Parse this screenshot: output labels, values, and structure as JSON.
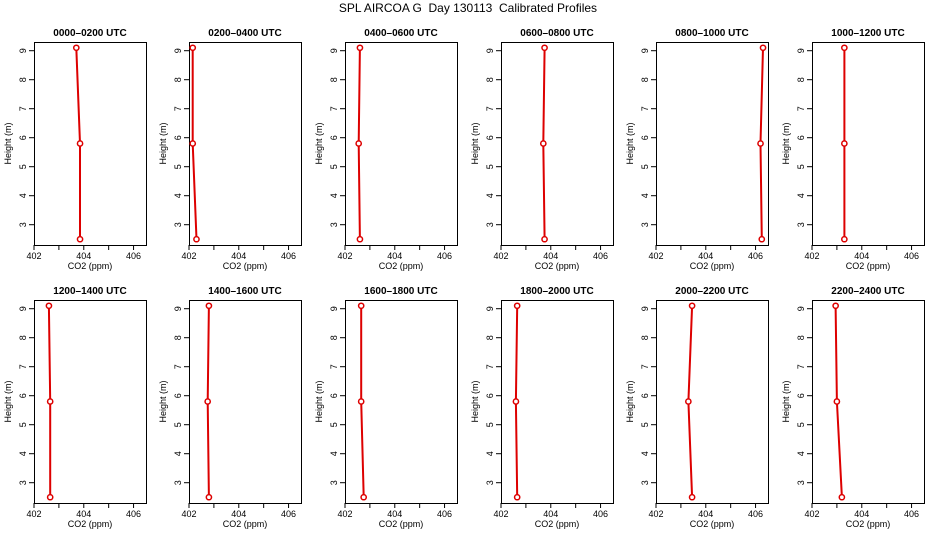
{
  "figure": {
    "title": "SPL AIRCOA G  Day 130113  Calibrated Profiles"
  },
  "style": {
    "series_color": "#dd0000"
  },
  "chart_data": [
    {
      "type": "line",
      "title": "0000–0200 UTC",
      "xlabel": "CO2 (ppm)",
      "ylabel": "Height (m)",
      "xlim": [
        402,
        406.5
      ],
      "ylim": [
        2.3,
        9.3
      ],
      "xticks": [
        402,
        404,
        406
      ],
      "yticks": [
        3,
        4,
        5,
        6,
        7,
        8,
        9
      ],
      "x": [
        403.85,
        403.85,
        403.7
      ],
      "y": [
        2.5,
        5.8,
        9.1
      ]
    },
    {
      "type": "line",
      "title": "0200–0400 UTC",
      "xlabel": "CO2 (ppm)",
      "ylabel": "Height (m)",
      "xlim": [
        402,
        406.5
      ],
      "ylim": [
        2.3,
        9.3
      ],
      "xticks": [
        402,
        404,
        406
      ],
      "yticks": [
        3,
        4,
        5,
        6,
        7,
        8,
        9
      ],
      "x": [
        402.3,
        402.15,
        402.15
      ],
      "y": [
        2.5,
        5.8,
        9.1
      ]
    },
    {
      "type": "line",
      "title": "0400–0600 UTC",
      "xlabel": "CO2 (ppm)",
      "ylabel": "Height (m)",
      "xlim": [
        402,
        406.5
      ],
      "ylim": [
        2.3,
        9.3
      ],
      "xticks": [
        402,
        404,
        406
      ],
      "yticks": [
        3,
        4,
        5,
        6,
        7,
        8,
        9
      ],
      "x": [
        402.6,
        402.55,
        402.6
      ],
      "y": [
        2.5,
        5.8,
        9.1
      ]
    },
    {
      "type": "line",
      "title": "0600–0800 UTC",
      "xlabel": "CO2 (ppm)",
      "ylabel": "Height (m)",
      "xlim": [
        402,
        406.5
      ],
      "ylim": [
        2.3,
        9.3
      ],
      "xticks": [
        402,
        404,
        406
      ],
      "yticks": [
        3,
        4,
        5,
        6,
        7,
        8,
        9
      ],
      "x": [
        403.75,
        403.7,
        403.75
      ],
      "y": [
        2.5,
        5.8,
        9.1
      ]
    },
    {
      "type": "line",
      "title": "0800–1000 UTC",
      "xlabel": "CO2 (ppm)",
      "ylabel": "Height (m)",
      "xlim": [
        402,
        406.5
      ],
      "ylim": [
        2.3,
        9.3
      ],
      "xticks": [
        402,
        404,
        406
      ],
      "yticks": [
        3,
        4,
        5,
        6,
        7,
        8,
        9
      ],
      "x": [
        406.25,
        406.2,
        406.3
      ],
      "y": [
        2.5,
        5.8,
        9.1
      ]
    },
    {
      "type": "line",
      "title": "1000–1200 UTC",
      "xlabel": "CO2 (ppm)",
      "ylabel": "Height (m)",
      "xlim": [
        402,
        406.5
      ],
      "ylim": [
        2.3,
        9.3
      ],
      "xticks": [
        402,
        404,
        406
      ],
      "yticks": [
        3,
        4,
        5,
        6,
        7,
        8,
        9
      ],
      "x": [
        403.3,
        403.3,
        403.3
      ],
      "y": [
        2.5,
        5.8,
        9.1
      ]
    },
    {
      "type": "line",
      "title": "1200–1400 UTC",
      "xlabel": "CO2 (ppm)",
      "ylabel": "Height (m)",
      "xlim": [
        402,
        406.5
      ],
      "ylim": [
        2.3,
        9.3
      ],
      "xticks": [
        402,
        404,
        406
      ],
      "yticks": [
        3,
        4,
        5,
        6,
        7,
        8,
        9
      ],
      "x": [
        402.65,
        402.65,
        402.6
      ],
      "y": [
        2.5,
        5.8,
        9.1
      ]
    },
    {
      "type": "line",
      "title": "1400–1600 UTC",
      "xlabel": "CO2 (ppm)",
      "ylabel": "Height (m)",
      "xlim": [
        402,
        406.5
      ],
      "ylim": [
        2.3,
        9.3
      ],
      "xticks": [
        402,
        404,
        406
      ],
      "yticks": [
        3,
        4,
        5,
        6,
        7,
        8,
        9
      ],
      "x": [
        402.8,
        402.75,
        402.8
      ],
      "y": [
        2.5,
        5.8,
        9.1
      ]
    },
    {
      "type": "line",
      "title": "1600–1800 UTC",
      "xlabel": "CO2 (ppm)",
      "ylabel": "Height (m)",
      "xlim": [
        402,
        406.5
      ],
      "ylim": [
        2.3,
        9.3
      ],
      "xticks": [
        402,
        404,
        406
      ],
      "yticks": [
        3,
        4,
        5,
        6,
        7,
        8,
        9
      ],
      "x": [
        402.75,
        402.65,
        402.65
      ],
      "y": [
        2.5,
        5.8,
        9.1
      ]
    },
    {
      "type": "line",
      "title": "1800–2000 UTC",
      "xlabel": "CO2 (ppm)",
      "ylabel": "Height (m)",
      "xlim": [
        402,
        406.5
      ],
      "ylim": [
        2.3,
        9.3
      ],
      "xticks": [
        402,
        404,
        406
      ],
      "yticks": [
        3,
        4,
        5,
        6,
        7,
        8,
        9
      ],
      "x": [
        402.65,
        402.6,
        402.65
      ],
      "y": [
        2.5,
        5.8,
        9.1
      ]
    },
    {
      "type": "line",
      "title": "2000–2200 UTC",
      "xlabel": "CO2 (ppm)",
      "ylabel": "Height (m)",
      "xlim": [
        402,
        406.5
      ],
      "ylim": [
        2.3,
        9.3
      ],
      "xticks": [
        402,
        404,
        406
      ],
      "yticks": [
        3,
        4,
        5,
        6,
        7,
        8,
        9
      ],
      "x": [
        403.45,
        403.3,
        403.45
      ],
      "y": [
        2.5,
        5.8,
        9.1
      ]
    },
    {
      "type": "line",
      "title": "2200–2400 UTC",
      "xlabel": "CO2 (ppm)",
      "ylabel": "Height (m)",
      "xlim": [
        402,
        406.5
      ],
      "ylim": [
        2.3,
        9.3
      ],
      "xticks": [
        402,
        404,
        406
      ],
      "yticks": [
        3,
        4,
        5,
        6,
        7,
        8,
        9
      ],
      "x": [
        403.2,
        403.0,
        402.95
      ],
      "y": [
        2.5,
        5.8,
        9.1
      ]
    }
  ]
}
